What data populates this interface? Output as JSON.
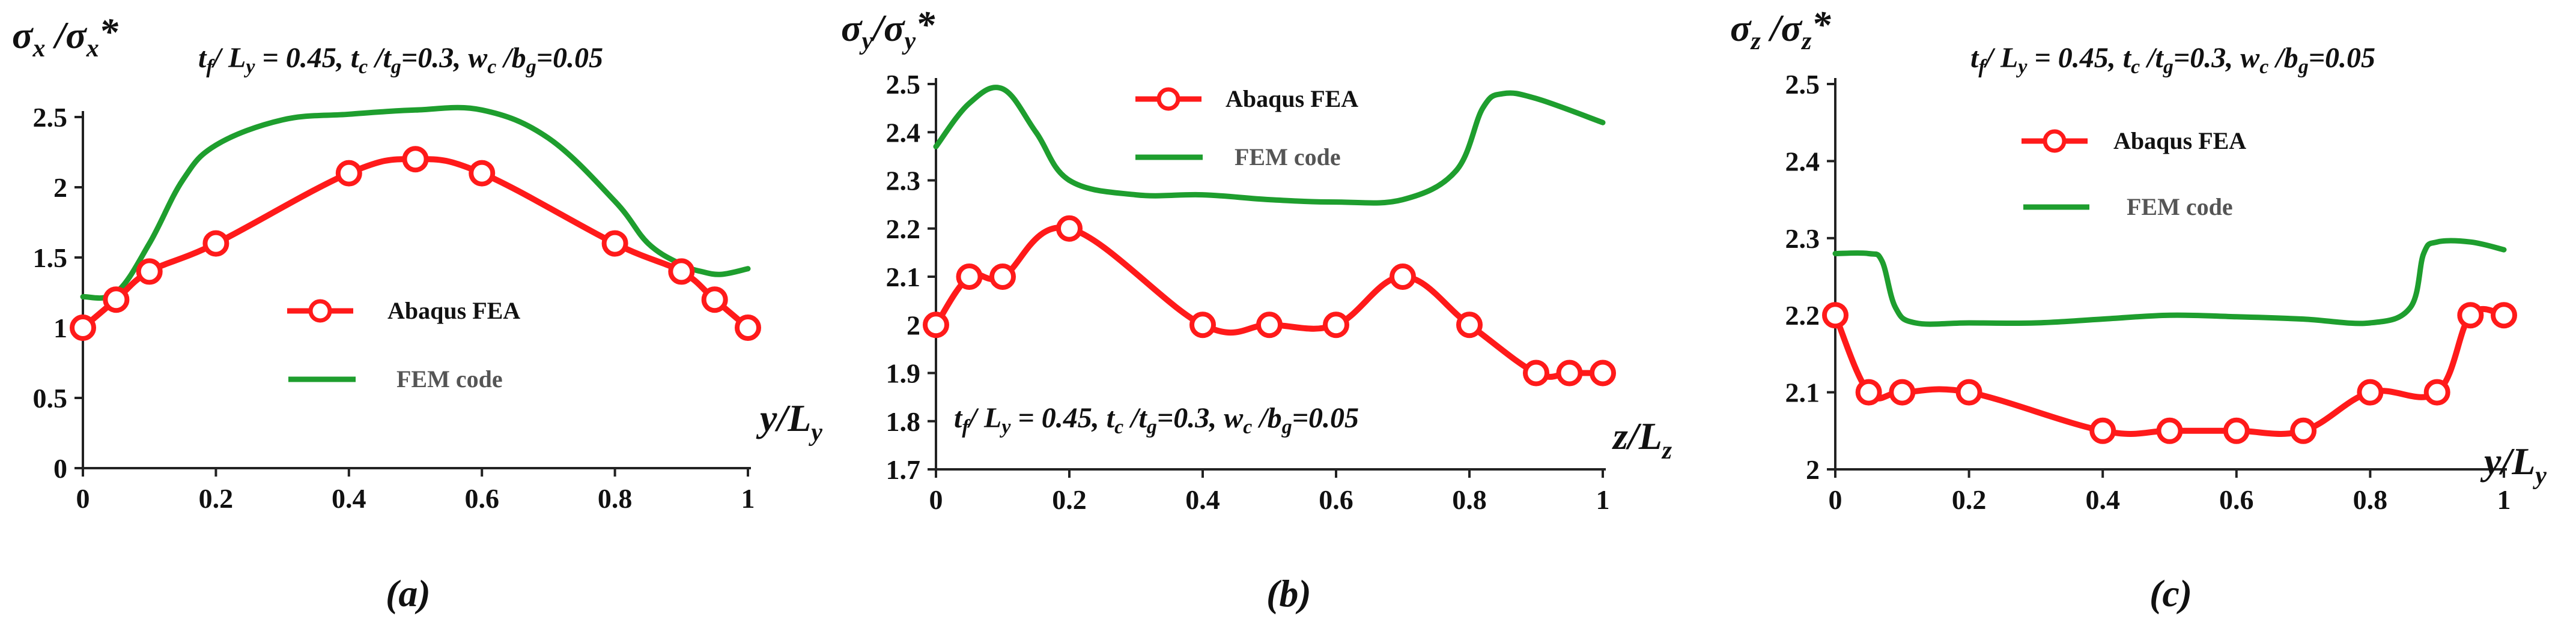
{
  "colors": {
    "fea": "#ff1a1a",
    "fem": "#1e9e2e",
    "axis": "#222222",
    "fem_label": "#555555"
  },
  "chart_data": [
    {
      "id": "a",
      "type": "line",
      "caption": "(a)",
      "ylabel_main": "σ",
      "ylabel_sub": "x",
      "ylabel_sep": " /σ",
      "ylabel_sub2": "x",
      "ylabel_star": "*",
      "xlabel_main": "y/L",
      "xlabel_sub": "y",
      "xlim": [
        0,
        1
      ],
      "ylim": [
        0,
        2.5
      ],
      "xticks": [
        "0",
        "0.2",
        "0.4",
        "0.6",
        "0.8",
        "1"
      ],
      "xtick_values": [
        0,
        0.2,
        0.4,
        0.6,
        0.8,
        1
      ],
      "yticks": [
        "0",
        "0.5",
        "1",
        "1.5",
        "2",
        "2.5"
      ],
      "ytick_values": [
        0,
        0.5,
        1,
        1.5,
        2,
        2.5
      ],
      "params": {
        "p1": "t",
        "p1s": "f",
        "p2": "/ L",
        "p2s": "y",
        "p3": " = 0.45,  t",
        "p3s": "c",
        "p4": " /t",
        "p4s": "g",
        "p5": "=0.3,  w",
        "p5s": "c",
        "p6": " /b",
        "p6s": "g",
        "p7": "=0.05"
      },
      "legend": {
        "fea_label": "Abaqus FEA",
        "fem_label": "FEM code"
      },
      "series": [
        {
          "name": "Abaqus FEA",
          "marker": "circle",
          "x": [
            0,
            0.05,
            0.1,
            0.2,
            0.4,
            0.5,
            0.6,
            0.8,
            0.9,
            0.95,
            1
          ],
          "y": [
            1.0,
            1.2,
            1.4,
            1.6,
            2.1,
            2.2,
            2.1,
            1.6,
            1.4,
            1.2,
            1.0
          ]
        },
        {
          "name": "FEM code",
          "marker": "none",
          "x": [
            0,
            0.05,
            0.1,
            0.15,
            0.2,
            0.3,
            0.4,
            0.5,
            0.6,
            0.7,
            0.8,
            0.85,
            0.9,
            0.93,
            0.96,
            1
          ],
          "y": [
            1.22,
            1.25,
            1.6,
            2.05,
            2.3,
            2.48,
            2.52,
            2.55,
            2.55,
            2.35,
            1.9,
            1.6,
            1.45,
            1.4,
            1.38,
            1.42
          ]
        }
      ]
    },
    {
      "id": "b",
      "type": "line",
      "caption": "(b)",
      "ylabel_main": "σ",
      "ylabel_sub": "y",
      "ylabel_sep": "/σ",
      "ylabel_sub2": "y",
      "ylabel_star": "*",
      "xlabel_main": "z/L",
      "xlabel_sub": "z",
      "xlim": [
        0,
        1
      ],
      "ylim": [
        1.7,
        2.5
      ],
      "xticks": [
        "0",
        "0.2",
        "0.4",
        "0.6",
        "0.8",
        "1"
      ],
      "xtick_values": [
        0,
        0.2,
        0.4,
        0.6,
        0.8,
        1
      ],
      "yticks": [
        "1.7",
        "1.8",
        "1.9",
        "2",
        "2.1",
        "2.2",
        "2.3",
        "2.4",
        "2.5"
      ],
      "ytick_values": [
        1.7,
        1.8,
        1.9,
        2.0,
        2.1,
        2.2,
        2.3,
        2.4,
        2.5
      ],
      "params": {
        "p1": "t",
        "p1s": "f",
        "p2": "/ L",
        "p2s": "y",
        "p3": " = 0.45,  t",
        "p3s": "c",
        "p4": " /t",
        "p4s": "g",
        "p5": "=0.3,  w",
        "p5s": "c",
        "p6": " /b",
        "p6s": "g",
        "p7": "=0.05"
      },
      "legend": {
        "fea_label": "Abaqus FEA",
        "fem_label": "FEM code"
      },
      "series": [
        {
          "name": "Abaqus FEA",
          "marker": "circle",
          "x": [
            0,
            0.05,
            0.1,
            0.2,
            0.4,
            0.5,
            0.6,
            0.7,
            0.8,
            0.9,
            0.95,
            1
          ],
          "y": [
            2.0,
            2.1,
            2.1,
            2.2,
            2.0,
            2.0,
            2.0,
            2.1,
            2.0,
            1.9,
            1.9,
            1.9
          ]
        },
        {
          "name": "FEM code",
          "marker": "none",
          "x": [
            0,
            0.05,
            0.1,
            0.15,
            0.2,
            0.3,
            0.4,
            0.5,
            0.6,
            0.7,
            0.78,
            0.82,
            0.85,
            0.9,
            1
          ],
          "y": [
            2.37,
            2.46,
            2.49,
            2.4,
            2.3,
            2.27,
            2.27,
            2.26,
            2.255,
            2.26,
            2.32,
            2.45,
            2.48,
            2.47,
            2.42
          ]
        }
      ]
    },
    {
      "id": "c",
      "type": "line",
      "caption": "(c)",
      "ylabel_main": "σ",
      "ylabel_sub": "z",
      "ylabel_sep": " /σ",
      "ylabel_sub2": "z",
      "ylabel_star": "*",
      "xlabel_main": "y/L",
      "xlabel_sub": "y",
      "xlim": [
        0,
        1
      ],
      "ylim": [
        2.0,
        2.5
      ],
      "xticks": [
        "0",
        "0.2",
        "0.4",
        "0.6",
        "0.8",
        "1"
      ],
      "xtick_values": [
        0,
        0.2,
        0.4,
        0.6,
        0.8,
        1
      ],
      "yticks": [
        "2",
        "2.1",
        "2.2",
        "2.3",
        "2.4",
        "2.5"
      ],
      "ytick_values": [
        2.0,
        2.1,
        2.2,
        2.3,
        2.4,
        2.5
      ],
      "params": {
        "p1": "t",
        "p1s": "f",
        "p2": "/ L",
        "p2s": "y",
        "p3": " = 0.45,  t",
        "p3s": "c",
        "p4": " /t",
        "p4s": "g",
        "p5": "=0.3,  w",
        "p5s": "c",
        "p6": " /b",
        "p6s": "g",
        "p7": "=0.05"
      },
      "legend": {
        "fea_label": "Abaqus FEA",
        "fem_label": "FEM code"
      },
      "series": [
        {
          "name": "Abaqus FEA",
          "marker": "circle",
          "x": [
            0,
            0.05,
            0.1,
            0.2,
            0.4,
            0.5,
            0.6,
            0.7,
            0.8,
            0.9,
            0.95,
            1
          ],
          "y": [
            2.2,
            2.1,
            2.1,
            2.1,
            2.05,
            2.05,
            2.05,
            2.05,
            2.1,
            2.1,
            2.2,
            2.2
          ]
        },
        {
          "name": "FEM code",
          "marker": "none",
          "x": [
            0,
            0.05,
            0.07,
            0.09,
            0.12,
            0.2,
            0.3,
            0.4,
            0.5,
            0.6,
            0.7,
            0.8,
            0.86,
            0.88,
            0.9,
            0.95,
            1
          ],
          "y": [
            2.28,
            2.28,
            2.27,
            2.21,
            2.19,
            2.19,
            2.19,
            2.195,
            2.2,
            2.198,
            2.195,
            2.19,
            2.21,
            2.28,
            2.295,
            2.295,
            2.285
          ]
        }
      ]
    }
  ]
}
